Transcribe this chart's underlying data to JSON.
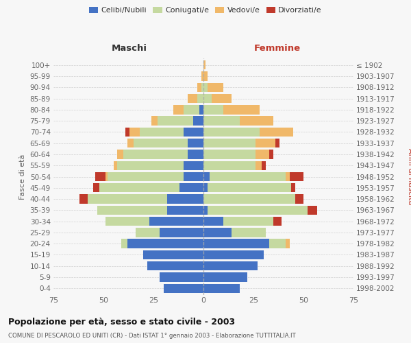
{
  "age_groups": [
    "0-4",
    "5-9",
    "10-14",
    "15-19",
    "20-24",
    "25-29",
    "30-34",
    "35-39",
    "40-44",
    "45-49",
    "50-54",
    "55-59",
    "60-64",
    "65-69",
    "70-74",
    "75-79",
    "80-84",
    "85-89",
    "90-94",
    "95-99",
    "100+"
  ],
  "birth_years": [
    "1998-2002",
    "1993-1997",
    "1988-1992",
    "1983-1987",
    "1978-1982",
    "1973-1977",
    "1968-1972",
    "1963-1967",
    "1958-1962",
    "1953-1957",
    "1948-1952",
    "1943-1947",
    "1938-1942",
    "1933-1937",
    "1928-1932",
    "1923-1927",
    "1918-1922",
    "1913-1917",
    "1908-1912",
    "1903-1907",
    "≤ 1902"
  ],
  "colors": {
    "celibe": "#4472c4",
    "coniugato": "#c5d9a0",
    "vedovo": "#f0b869",
    "divorziato": "#c0392b"
  },
  "maschi": {
    "celibe": [
      20,
      22,
      28,
      30,
      38,
      22,
      27,
      18,
      18,
      12,
      10,
      10,
      8,
      8,
      10,
      5,
      2,
      0,
      0,
      0,
      0
    ],
    "coniugato": [
      0,
      0,
      0,
      0,
      3,
      12,
      22,
      35,
      40,
      40,
      38,
      33,
      32,
      27,
      22,
      18,
      8,
      3,
      1,
      0,
      0
    ],
    "vedovo": [
      0,
      0,
      0,
      0,
      0,
      0,
      0,
      0,
      0,
      0,
      1,
      2,
      3,
      3,
      5,
      3,
      5,
      5,
      2,
      1,
      0
    ],
    "divorziato": [
      0,
      0,
      0,
      0,
      0,
      0,
      0,
      0,
      4,
      3,
      5,
      0,
      0,
      0,
      2,
      0,
      0,
      0,
      0,
      0,
      0
    ]
  },
  "femmine": {
    "nubile": [
      18,
      22,
      27,
      30,
      33,
      14,
      10,
      2,
      0,
      2,
      3,
      0,
      0,
      0,
      0,
      0,
      0,
      0,
      0,
      0,
      0
    ],
    "coniugata": [
      0,
      0,
      0,
      0,
      8,
      17,
      25,
      50,
      46,
      42,
      38,
      26,
      26,
      26,
      28,
      18,
      10,
      4,
      2,
      0,
      0
    ],
    "vedova": [
      0,
      0,
      0,
      0,
      2,
      0,
      0,
      0,
      0,
      0,
      2,
      3,
      7,
      10,
      17,
      17,
      18,
      10,
      8,
      2,
      1
    ],
    "divorziata": [
      0,
      0,
      0,
      0,
      0,
      0,
      4,
      5,
      4,
      2,
      7,
      2,
      2,
      2,
      0,
      0,
      0,
      0,
      0,
      0,
      0
    ]
  },
  "xlim": 75,
  "title": "Popolazione per età, sesso e stato civile - 2003",
  "subtitle": "COMUNE DI PESCAROLO ED UNITI (CR) - Dati ISTAT 1° gennaio 2003 - Elaborazione TUTTITALIA.IT",
  "xlabel_left": "Maschi",
  "xlabel_right": "Femmine",
  "ylabel_left": "Fasce di età",
  "ylabel_right": "Anni di nascita",
  "background_color": "#f7f7f7",
  "grid_color": "#cccccc"
}
